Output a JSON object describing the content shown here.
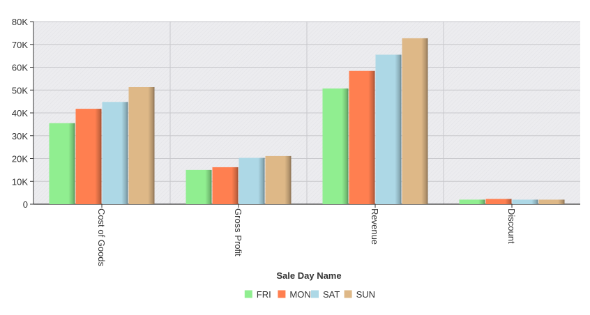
{
  "chart_data": {
    "type": "bar",
    "xlabel": "Sale Day Name",
    "ylabel": "",
    "ylim": [
      0,
      80000
    ],
    "yticks": [
      {
        "value": 0,
        "label": "0"
      },
      {
        "value": 10000,
        "label": "10K"
      },
      {
        "value": 20000,
        "label": "20K"
      },
      {
        "value": 30000,
        "label": "30K"
      },
      {
        "value": 40000,
        "label": "40K"
      },
      {
        "value": 50000,
        "label": "50K"
      },
      {
        "value": 60000,
        "label": "60K"
      },
      {
        "value": 70000,
        "label": "70K"
      },
      {
        "value": 80000,
        "label": "80K"
      }
    ],
    "categories": [
      "Cost of Goods",
      "Gross Profit",
      "Revenue",
      "Discount"
    ],
    "series": [
      {
        "name": "FRI",
        "color": "#90EE90",
        "values": [
          35500,
          15000,
          50700,
          2000
        ]
      },
      {
        "name": "MON",
        "color": "#FF7F50",
        "values": [
          41800,
          16200,
          58400,
          2300
        ]
      },
      {
        "name": "SAT",
        "color": "#ADD8E6",
        "values": [
          44800,
          20300,
          65500,
          2000
        ]
      },
      {
        "name": "SUN",
        "color": "#DEB887",
        "values": [
          51300,
          21100,
          72700,
          2000
        ]
      }
    ],
    "grid": true,
    "legend_position": "bottom-center",
    "plot_background": "#ebebee"
  }
}
